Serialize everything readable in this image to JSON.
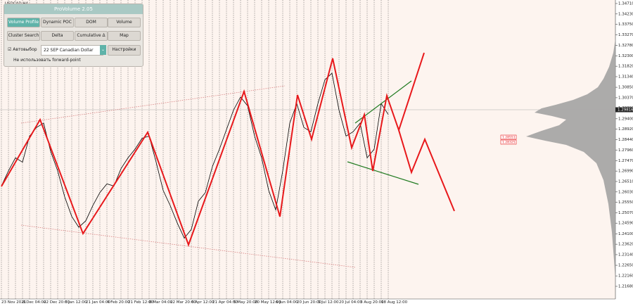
{
  "window_title": "USDCAD,H4",
  "panel": {
    "title": "ProVolume 2.05",
    "buttons": [
      "Volume Profile",
      "Dynamic POC",
      "DOM",
      "Volume",
      "Cluster Search",
      "Delta",
      "Cumulative Δ",
      "Map"
    ],
    "auto_select": "Автовыбор",
    "instrument": "22 SEP Canadian Dollar",
    "settings": "Настройки",
    "forward_point": "Не использовать forward-point"
  },
  "chart_data": {
    "type": "line",
    "categories": [
      "23 Nov 2021",
      null,
      null,
      "8 Dec 04:00",
      null,
      null,
      "22 Dec 20:00",
      null,
      null,
      "6 Jan 12:00",
      null,
      null,
      "21 Jan 04:00",
      null,
      null,
      "4 Feb 20:00",
      null,
      null,
      "21 Feb 12:00",
      null,
      null,
      "8 Mar 04:00",
      null,
      null,
      "22 Mar 20:00",
      null,
      null,
      "6 Apr 12:00",
      null,
      null,
      "21 Apr 04:00",
      null,
      null,
      "5 May 20:00",
      null,
      null,
      "20 May 12:00",
      null,
      null,
      "6 Jun 04:00",
      null,
      null,
      "20 Jun 20:00",
      null,
      null,
      "5 Jul 12:00",
      null,
      null,
      "20 Jul 04:00",
      null,
      null,
      "3 Aug 20:00",
      null,
      null,
      "18 Aug 12:00",
      null
    ],
    "values": [
      1.263,
      1.27,
      1.276,
      1.274,
      1.286,
      1.29,
      1.292,
      1.279,
      1.27,
      1.258,
      1.249,
      1.244,
      1.247,
      1.254,
      1.26,
      1.264,
      1.263,
      1.271,
      1.276,
      1.28,
      1.285,
      1.286,
      1.274,
      1.261,
      1.254,
      1.246,
      1.239,
      1.243,
      1.256,
      1.26,
      1.272,
      1.28,
      1.289,
      1.298,
      1.304,
      1.3,
      1.286,
      1.276,
      1.261,
      1.252,
      1.27,
      1.292,
      1.301,
      1.29,
      1.288,
      1.301,
      1.312,
      1.315,
      1.298,
      1.286,
      1.288,
      1.292,
      1.276,
      1.28,
      1.301,
      1.296
    ],
    "color": "#000000",
    "xlim": [
      -0.2,
      87.3
    ],
    "ylim": [
      1.21097,
      1.34872
    ],
    "yticks": [
      {
        "value": 1.3471,
        "label": "1.34710"
      },
      {
        "value": 1.3423,
        "label": "1.34230"
      },
      {
        "value": 1.3375,
        "label": "1.33750"
      },
      {
        "value": 1.3327,
        "label": "1.33270"
      },
      {
        "value": 1.3278,
        "label": "1.32780"
      },
      {
        "value": 1.323,
        "label": "1.32300"
      },
      {
        "value": 1.3182,
        "label": "1.31820"
      },
      {
        "value": 1.3134,
        "label": "1.31340"
      },
      {
        "value": 1.3085,
        "label": "1.30850"
      },
      {
        "value": 1.3037,
        "label": "1.30370"
      },
      {
        "value": 1.2989,
        "label": "1.29890"
      },
      {
        "value": 1.294,
        "label": "1.29400"
      },
      {
        "value": 1.2892,
        "label": "1.28920"
      },
      {
        "value": 1.2844,
        "label": "1.28440"
      },
      {
        "value": 1.2796,
        "label": "1.27960"
      },
      {
        "value": 1.2747,
        "label": "1.27470"
      },
      {
        "value": 1.2699,
        "label": "1.26990"
      },
      {
        "value": 1.2651,
        "label": "1.26510"
      },
      {
        "value": 1.2603,
        "label": "1.26030"
      },
      {
        "value": 1.2555,
        "label": "1.25550"
      },
      {
        "value": 1.2507,
        "label": "1.25070"
      },
      {
        "value": 1.2459,
        "label": "1.24590"
      },
      {
        "value": 1.241,
        "label": "1.24100"
      },
      {
        "value": 1.2362,
        "label": "1.23620"
      },
      {
        "value": 1.2314,
        "label": "1.23140"
      },
      {
        "value": 1.2265,
        "label": "1.22650"
      },
      {
        "value": 1.2216,
        "label": "1.22160"
      },
      {
        "value": 1.2168,
        "label": "1.21680"
      }
    ],
    "zigzag": {
      "color": "#e8181b",
      "x": [
        0,
        5.5,
        11.6,
        20.8,
        26.6,
        34.5,
        39.6,
        42.1,
        44.1,
        47.1,
        49.8,
        51.6,
        52.8,
        54.8,
        56.5,
        60.1
      ],
      "values": [
        1.26282,
        1.29361,
        1.2411,
        1.28778,
        1.23592,
        1.30658,
        1.24888,
        1.30496,
        1.28454,
        1.32182,
        1.28065,
        1.29588,
        1.26995,
        1.30464,
        1.28875,
        1.32441
      ]
    },
    "projection": {
      "color": "#e8181b",
      "x": [
        56.5,
        58.3,
        60.2,
        64.4
      ],
      "values": [
        1.28875,
        1.2693,
        1.28454,
        1.25148
      ]
    },
    "channel_upper": {
      "color": "#1f7a1f",
      "x": [
        50.3,
        58.3
      ],
      "values": [
        1.29199,
        1.31144
      ]
    },
    "channel_lower": {
      "color": "#1f7a1f",
      "x": [
        49.2,
        59.3
      ],
      "values": [
        1.27417,
        1.2638
      ]
    },
    "trend_upper": {
      "color": "#d98080",
      "x": [
        2.8,
        40.3
      ],
      "values": [
        1.29199,
        1.30917
      ]
    },
    "trend_lower": {
      "color": "#d98080",
      "x": [
        2.8,
        50.3
      ],
      "values": [
        1.24499,
        1.22554
      ]
    },
    "current_price": {
      "value": 1.29816,
      "label": "1.29816"
    },
    "level_labels": [
      {
        "value": 1.28551,
        "label": "1.28551"
      },
      {
        "value": 1.28325,
        "label": "1.28325"
      }
    ]
  }
}
